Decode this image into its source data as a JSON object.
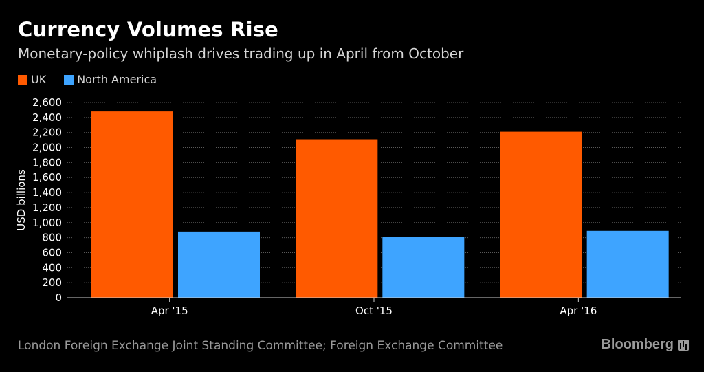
{
  "title": "Currency Volumes Rise",
  "subtitle": "Monetary-policy whiplash drives trading up in April from October",
  "source": "London Foreign Exchange Joint Standing Committee; Foreign Exchange Committee",
  "brand": "Bloomberg",
  "colors": {
    "uk": "#ff5a00",
    "north_america": "#3ea4ff",
    "grid": "#5a5a5a",
    "axis": "#cccccc"
  },
  "chart_data": {
    "type": "bar",
    "categories": [
      "Apr '15",
      "Oct '15",
      "Apr '16"
    ],
    "series": [
      {
        "name": "UK",
        "values": [
          2480,
          2110,
          2210
        ]
      },
      {
        "name": "North America",
        "values": [
          880,
          810,
          890
        ]
      }
    ],
    "ylabel": "USD billions",
    "ylim": [
      0,
      2600
    ],
    "yticks": [
      0,
      200,
      400,
      600,
      800,
      1000,
      1200,
      1400,
      1600,
      1800,
      2000,
      2200,
      2400,
      2600
    ],
    "ytick_labels": [
      "0",
      "200",
      "400",
      "600",
      "800",
      "1,000",
      "1,200",
      "1,400",
      "1,600",
      "1,800",
      "2,000",
      "2,200",
      "2,400",
      "2,600"
    ],
    "grid": true,
    "legend": "top-left"
  }
}
